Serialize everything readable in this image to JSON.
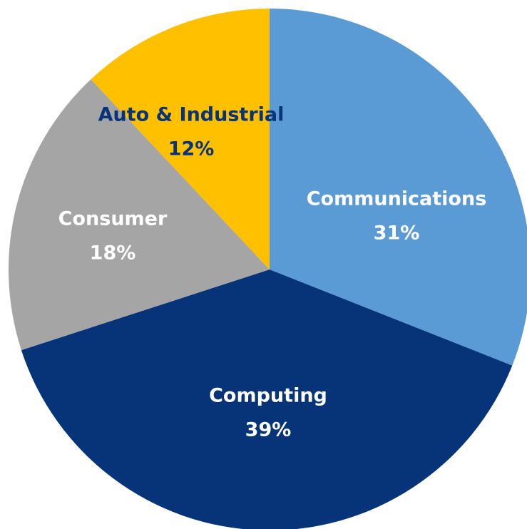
{
  "chart_data": {
    "type": "pie",
    "title": "",
    "start_angle_deg": 0,
    "direction": "clockwise",
    "categories": [
      "Communications",
      "Computing",
      "Consumer",
      "Auto & Industrial"
    ],
    "values": [
      31,
      39,
      18,
      12
    ],
    "value_labels": [
      "31%",
      "39%",
      "18%",
      "12%"
    ],
    "colors": [
      "#5B9BD5",
      "#073478",
      "#A5A5A5",
      "#FFC000"
    ],
    "label_colors": [
      "#ffffff",
      "#ffffff",
      "#ffffff",
      "#073478"
    ],
    "legend": "none",
    "data_labels": "on-slice"
  }
}
